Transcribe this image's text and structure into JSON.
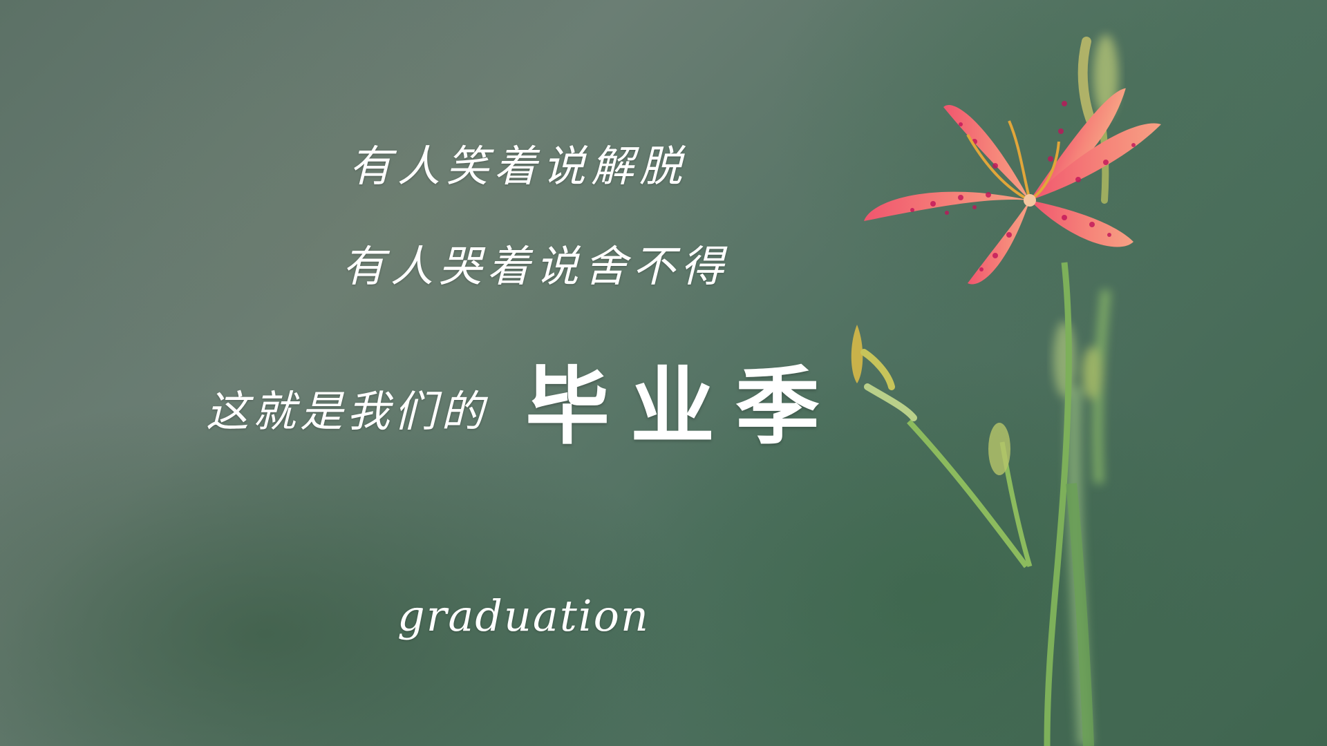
{
  "text": {
    "line1": "有人笑着说解脱",
    "line2": "有人哭着说舍不得",
    "line3_prefix": "这就是我们的",
    "line3_emphasis": "毕业季",
    "subtitle": "graduation"
  },
  "colors": {
    "text": "#ffffff",
    "petal": "#e8556e",
    "petal_spot": "#c01a5a",
    "stem": "#7fae5a",
    "background": "#587062"
  }
}
